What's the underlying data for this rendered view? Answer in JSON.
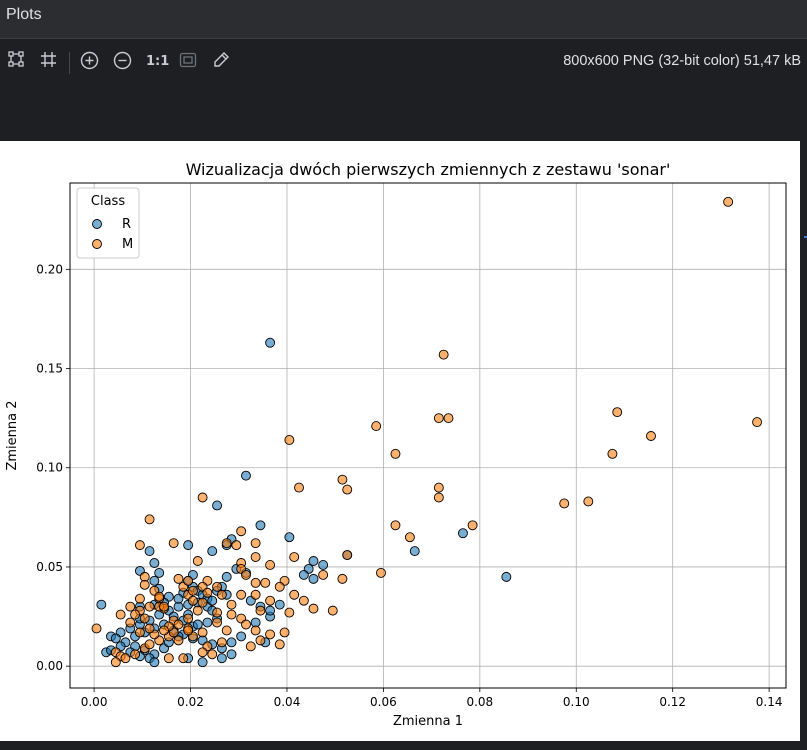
{
  "panel": {
    "title": "Plots"
  },
  "toolbar": {
    "icons": [
      "layout-icon",
      "grid-icon",
      "zoom-in-icon",
      "zoom-out-icon",
      "actual-size-icon",
      "fit-icon",
      "color-picker-icon"
    ],
    "actual_size_label": "1:1",
    "image_info": "800x600 PNG (32-bit color) 51,47 kB"
  },
  "chart_data": {
    "type": "scatter",
    "title": "Wizualizacja dwóch pierwszych zmiennych z zestawu 'sonar'",
    "xlabel": "Zmienna 1",
    "ylabel": "Zmienna 2",
    "xlim": [
      -0.005,
      0.1435
    ],
    "ylim": [
      -0.011,
      0.2435
    ],
    "xticks": [
      0.0,
      0.02,
      0.04,
      0.06,
      0.08,
      0.1,
      0.12,
      0.14
    ],
    "xtick_labels": [
      "0.00",
      "0.02",
      "0.04",
      "0.06",
      "0.08",
      "0.10",
      "0.12",
      "0.14"
    ],
    "yticks": [
      0.0,
      0.05,
      0.1,
      0.15,
      0.2
    ],
    "ytick_labels": [
      "0.00",
      "0.05",
      "0.10",
      "0.15",
      "0.20"
    ],
    "grid": true,
    "legend": {
      "title": "Class",
      "placement": "top-left"
    },
    "series": [
      {
        "name": "R",
        "color": "#1f77b4",
        "points": [
          [
            0.0365,
            0.163
          ],
          [
            0.0315,
            0.096
          ],
          [
            0.0255,
            0.081
          ],
          [
            0.0345,
            0.071
          ],
          [
            0.0405,
            0.065
          ],
          [
            0.0765,
            0.067
          ],
          [
            0.0855,
            0.045
          ],
          [
            0.0665,
            0.058
          ],
          [
            0.0525,
            0.056
          ],
          [
            0.0475,
            0.051
          ],
          [
            0.0455,
            0.053
          ],
          [
            0.0445,
            0.049
          ],
          [
            0.0435,
            0.046
          ],
          [
            0.0455,
            0.044
          ],
          [
            0.0285,
            0.064
          ],
          [
            0.0275,
            0.061
          ],
          [
            0.0195,
            0.061
          ],
          [
            0.0245,
            0.058
          ],
          [
            0.0115,
            0.058
          ],
          [
            0.0125,
            0.052
          ],
          [
            0.0095,
            0.048
          ],
          [
            0.0125,
            0.043
          ],
          [
            0.0135,
            0.039
          ],
          [
            0.0155,
            0.035
          ],
          [
            0.0205,
            0.04
          ],
          [
            0.0215,
            0.038
          ],
          [
            0.0225,
            0.036
          ],
          [
            0.0235,
            0.034
          ],
          [
            0.0215,
            0.032
          ],
          [
            0.0195,
            0.031
          ],
          [
            0.0175,
            0.03
          ],
          [
            0.0155,
            0.028
          ],
          [
            0.0135,
            0.026
          ],
          [
            0.0115,
            0.023
          ],
          [
            0.0095,
            0.021
          ],
          [
            0.0075,
            0.019
          ],
          [
            0.0055,
            0.017
          ],
          [
            0.0035,
            0.015
          ],
          [
            0.0085,
            0.015
          ],
          [
            0.0105,
            0.017
          ],
          [
            0.0125,
            0.019
          ],
          [
            0.0145,
            0.021
          ],
          [
            0.0165,
            0.018
          ],
          [
            0.0185,
            0.016
          ],
          [
            0.0205,
            0.014
          ],
          [
            0.0225,
            0.013
          ],
          [
            0.0245,
            0.011
          ],
          [
            0.0265,
            0.009
          ],
          [
            0.0285,
            0.012
          ],
          [
            0.0305,
            0.015
          ],
          [
            0.0335,
            0.022
          ],
          [
            0.0365,
            0.025
          ],
          [
            0.0385,
            0.031
          ],
          [
            0.0365,
            0.028
          ],
          [
            0.0345,
            0.03
          ],
          [
            0.0325,
            0.033
          ],
          [
            0.0275,
            0.036
          ],
          [
            0.0265,
            0.04
          ],
          [
            0.0275,
            0.045
          ],
          [
            0.0295,
            0.049
          ],
          [
            0.0315,
            0.047
          ],
          [
            0.0205,
            0.046
          ],
          [
            0.0195,
            0.043
          ],
          [
            0.0185,
            0.037
          ],
          [
            0.0175,
            0.034
          ],
          [
            0.0235,
            0.03
          ],
          [
            0.0245,
            0.028
          ],
          [
            0.0255,
            0.024
          ],
          [
            0.0235,
            0.022
          ],
          [
            0.0205,
            0.02
          ],
          [
            0.0185,
            0.023
          ],
          [
            0.0165,
            0.025
          ],
          [
            0.0145,
            0.009
          ],
          [
            0.0125,
            0.006
          ],
          [
            0.0105,
            0.008
          ],
          [
            0.0085,
            0.01
          ],
          [
            0.0065,
            0.012
          ],
          [
            0.0045,
            0.014
          ],
          [
            0.0025,
            0.007
          ],
          [
            0.0035,
            0.008
          ],
          [
            0.0055,
            0.01
          ],
          [
            0.0075,
            0.007
          ],
          [
            0.0095,
            0.005
          ],
          [
            0.0115,
            0.004
          ],
          [
            0.0125,
            0.002
          ],
          [
            0.0195,
            0.004
          ],
          [
            0.0225,
            0.002
          ],
          [
            0.0265,
            0.004
          ],
          [
            0.0285,
            0.006
          ],
          [
            0.0355,
            0.012
          ],
          [
            0.0095,
            0.03
          ],
          [
            0.0125,
            0.031
          ],
          [
            0.0145,
            0.032
          ],
          [
            0.0015,
            0.031
          ],
          [
            0.0095,
            0.024
          ],
          [
            0.0155,
            0.012
          ],
          [
            0.0175,
            0.015
          ],
          [
            0.0195,
            0.026
          ],
          [
            0.0215,
            0.021
          ],
          [
            0.0245,
            0.033
          ],
          [
            0.0255,
            0.038
          ],
          [
            0.0135,
            0.047
          ]
        ]
      },
      {
        "name": "M",
        "color": "#ff7f0e",
        "points": [
          [
            0.1315,
            0.234
          ],
          [
            0.0725,
            0.157
          ],
          [
            0.0715,
            0.125
          ],
          [
            0.0735,
            0.125
          ],
          [
            0.0585,
            0.121
          ],
          [
            0.1085,
            0.128
          ],
          [
            0.1155,
            0.116
          ],
          [
            0.1375,
            0.123
          ],
          [
            0.1075,
            0.107
          ],
          [
            0.0625,
            0.107
          ],
          [
            0.0405,
            0.114
          ],
          [
            0.0515,
            0.094
          ],
          [
            0.0525,
            0.089
          ],
          [
            0.0715,
            0.09
          ],
          [
            0.0715,
            0.085
          ],
          [
            0.0425,
            0.09
          ],
          [
            0.0225,
            0.085
          ],
          [
            0.0975,
            0.082
          ],
          [
            0.1025,
            0.083
          ],
          [
            0.0785,
            0.071
          ],
          [
            0.0625,
            0.071
          ],
          [
            0.0655,
            0.065
          ],
          [
            0.0595,
            0.047
          ],
          [
            0.0525,
            0.056
          ],
          [
            0.0515,
            0.044
          ],
          [
            0.0475,
            0.046
          ],
          [
            0.0415,
            0.055
          ],
          [
            0.0395,
            0.043
          ],
          [
            0.0385,
            0.04
          ],
          [
            0.0415,
            0.036
          ],
          [
            0.0435,
            0.033
          ],
          [
            0.0455,
            0.029
          ],
          [
            0.0495,
            0.028
          ],
          [
            0.0405,
            0.027
          ],
          [
            0.0365,
            0.033
          ],
          [
            0.0335,
            0.036
          ],
          [
            0.0355,
            0.042
          ],
          [
            0.0365,
            0.051
          ],
          [
            0.0335,
            0.055
          ],
          [
            0.0335,
            0.062
          ],
          [
            0.0305,
            0.068
          ],
          [
            0.0295,
            0.061
          ],
          [
            0.0305,
            0.052
          ],
          [
            0.0305,
            0.049
          ],
          [
            0.0315,
            0.046
          ],
          [
            0.0335,
            0.042
          ],
          [
            0.0305,
            0.036
          ],
          [
            0.0285,
            0.031
          ],
          [
            0.0265,
            0.036
          ],
          [
            0.0255,
            0.04
          ],
          [
            0.0235,
            0.043
          ],
          [
            0.0215,
            0.053
          ],
          [
            0.0165,
            0.062
          ],
          [
            0.0115,
            0.074
          ],
          [
            0.0095,
            0.061
          ],
          [
            0.0105,
            0.045
          ],
          [
            0.0175,
            0.044
          ],
          [
            0.0185,
            0.04
          ],
          [
            0.0195,
            0.036
          ],
          [
            0.0205,
            0.033
          ],
          [
            0.0215,
            0.028
          ],
          [
            0.0195,
            0.024
          ],
          [
            0.0165,
            0.023
          ],
          [
            0.0145,
            0.029
          ],
          [
            0.0135,
            0.034
          ],
          [
            0.0125,
            0.038
          ],
          [
            0.0105,
            0.041
          ],
          [
            0.0095,
            0.034
          ],
          [
            0.0095,
            0.028
          ],
          [
            0.0085,
            0.026
          ],
          [
            0.0075,
            0.022
          ],
          [
            0.0055,
            0.026
          ],
          [
            0.0045,
            0.007
          ],
          [
            0.0055,
            0.005
          ],
          [
            0.0045,
            0.002
          ],
          [
            0.0065,
            0.004
          ],
          [
            0.0085,
            0.006
          ],
          [
            0.0105,
            0.009
          ],
          [
            0.0115,
            0.011
          ],
          [
            0.0135,
            0.013
          ],
          [
            0.0155,
            0.015
          ],
          [
            0.0165,
            0.017
          ],
          [
            0.0175,
            0.013
          ],
          [
            0.0195,
            0.019
          ],
          [
            0.0205,
            0.015
          ],
          [
            0.0225,
            0.017
          ],
          [
            0.0235,
            0.01
          ],
          [
            0.0245,
            0.006
          ],
          [
            0.0265,
            0.012
          ],
          [
            0.0275,
            0.018
          ],
          [
            0.0255,
            0.022
          ],
          [
            0.0285,
            0.026
          ],
          [
            0.0305,
            0.024
          ],
          [
            0.0315,
            0.021
          ],
          [
            0.0335,
            0.018
          ],
          [
            0.0345,
            0.013
          ],
          [
            0.0325,
            0.01
          ],
          [
            0.0385,
            0.011
          ],
          [
            0.0395,
            0.017
          ],
          [
            0.0365,
            0.016
          ],
          [
            0.0345,
            0.028
          ],
          [
            0.0255,
            0.027
          ],
          [
            0.0225,
            0.04
          ],
          [
            0.0275,
            0.062
          ],
          [
            0.0235,
            0.037
          ],
          [
            0.0225,
            0.032
          ],
          [
            0.0155,
            0.004
          ],
          [
            0.0185,
            0.004
          ],
          [
            0.0225,
            0.007
          ],
          [
            0.0175,
            0.021
          ],
          [
            0.0195,
            0.018
          ],
          [
            0.0155,
            0.02
          ],
          [
            0.0145,
            0.018
          ],
          [
            0.0125,
            0.016
          ],
          [
            0.0115,
            0.03
          ],
          [
            0.0135,
            0.03
          ],
          [
            0.0115,
            0.019
          ],
          [
            0.0095,
            0.017
          ],
          [
            0.0005,
            0.019
          ],
          [
            0.0075,
            0.03
          ],
          [
            0.0105,
            0.024
          ],
          [
            0.0135,
            0.035
          ],
          [
            0.0145,
            0.03
          ],
          [
            0.0195,
            0.043
          ],
          [
            0.0205,
            0.038
          ]
        ]
      }
    ]
  }
}
